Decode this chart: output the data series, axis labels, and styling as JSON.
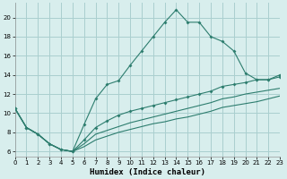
{
  "xlabel": "Humidex (Indice chaleur)",
  "bg_color": "#d8eeed",
  "grid_color": "#aacfcf",
  "line_color": "#2d7d6e",
  "x_ticks": [
    0,
    1,
    2,
    3,
    4,
    5,
    6,
    7,
    8,
    9,
    10,
    11,
    12,
    13,
    14,
    15,
    16,
    17,
    18,
    19,
    20,
    21,
    22,
    23
  ],
  "y_ticks": [
    6,
    8,
    10,
    12,
    14,
    16,
    18,
    20
  ],
  "xlim": [
    0,
    23
  ],
  "ylim": [
    5.5,
    21.5
  ],
  "s1_x": [
    0,
    1,
    2,
    3,
    4,
    5,
    6,
    7,
    8,
    9,
    10,
    11,
    12,
    13,
    14,
    15,
    16,
    17,
    18,
    19,
    20,
    21,
    22,
    23
  ],
  "s1_y": [
    10.5,
    8.5,
    7.8,
    6.8,
    6.2,
    6.0,
    8.8,
    11.5,
    13.0,
    13.4,
    15.0,
    16.5,
    18.0,
    19.5,
    20.8,
    19.5,
    19.5,
    18.0,
    17.5,
    16.5,
    14.2,
    13.5,
    13.5,
    14.0
  ],
  "s2_x": [
    0,
    1,
    2,
    3,
    4,
    5,
    6,
    7,
    8,
    9,
    10,
    11,
    12,
    13,
    14,
    15,
    16,
    17,
    18,
    19,
    20,
    21,
    22,
    23
  ],
  "s2_y": [
    10.5,
    8.5,
    7.8,
    6.8,
    6.2,
    6.0,
    7.2,
    8.5,
    9.2,
    9.8,
    10.2,
    10.5,
    10.8,
    11.1,
    11.4,
    11.7,
    12.0,
    12.3,
    12.8,
    13.0,
    13.2,
    13.5,
    13.5,
    13.8
  ],
  "s3_x": [
    0,
    1,
    2,
    3,
    4,
    5,
    6,
    7,
    8,
    9,
    10,
    11,
    12,
    13,
    14,
    15,
    16,
    17,
    18,
    19,
    20,
    21,
    22,
    23
  ],
  "s3_y": [
    10.5,
    8.5,
    7.8,
    6.8,
    6.2,
    6.0,
    6.8,
    7.8,
    8.2,
    8.6,
    9.0,
    9.3,
    9.6,
    9.9,
    10.2,
    10.5,
    10.8,
    11.1,
    11.5,
    11.7,
    12.0,
    12.2,
    12.4,
    12.6
  ],
  "s4_x": [
    0,
    1,
    2,
    3,
    4,
    5,
    6,
    7,
    8,
    9,
    10,
    11,
    12,
    13,
    14,
    15,
    16,
    17,
    18,
    19,
    20,
    21,
    22,
    23
  ],
  "s4_y": [
    10.5,
    8.5,
    7.8,
    6.8,
    6.2,
    6.0,
    6.5,
    7.2,
    7.6,
    8.0,
    8.3,
    8.6,
    8.9,
    9.1,
    9.4,
    9.6,
    9.9,
    10.2,
    10.6,
    10.8,
    11.0,
    11.2,
    11.5,
    11.8
  ]
}
